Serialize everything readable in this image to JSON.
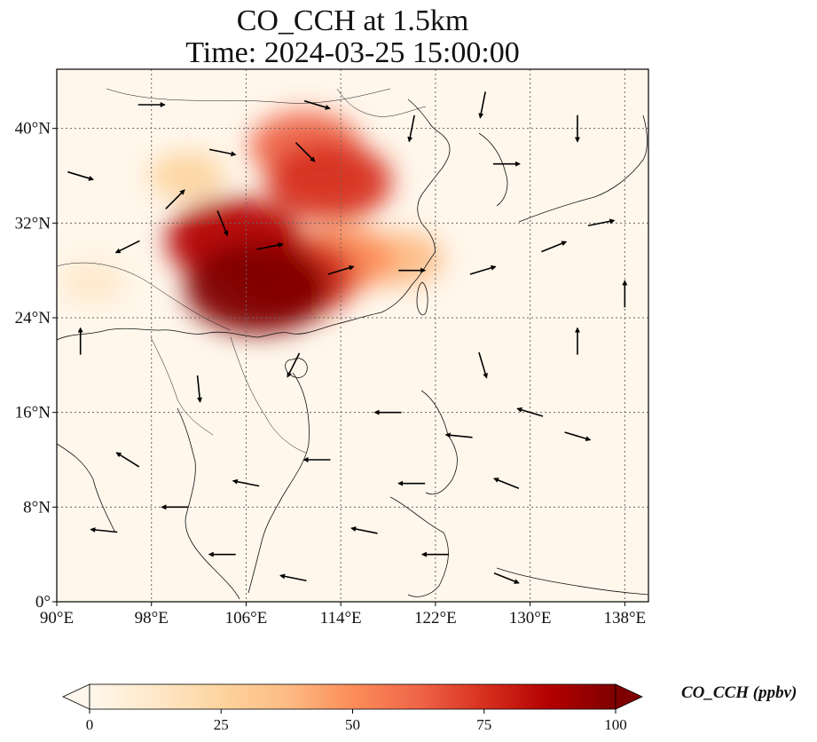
{
  "title": {
    "line1": "CO_CCH at 1.5km",
    "line2": "Time: 2024-03-25 15:00:00"
  },
  "map": {
    "lon_range": [
      90,
      140
    ],
    "lat_range": [
      0,
      45
    ],
    "lon_ticks": [
      {
        "value": 90,
        "label": "90°E"
      },
      {
        "value": 98,
        "label": "98°E"
      },
      {
        "value": 106,
        "label": "106°E"
      },
      {
        "value": 114,
        "label": "114°E"
      },
      {
        "value": 122,
        "label": "122°E"
      },
      {
        "value": 130,
        "label": "130°E"
      },
      {
        "value": 138,
        "label": "138°E"
      }
    ],
    "lat_ticks": [
      {
        "value": 0,
        "label": "0°"
      },
      {
        "value": 8,
        "label": "8°N"
      },
      {
        "value": 16,
        "label": "16°N"
      },
      {
        "value": 24,
        "label": "24°N"
      },
      {
        "value": 32,
        "label": "32°N"
      },
      {
        "value": 40,
        "label": "40°N"
      }
    ],
    "gridlines": "dotted",
    "colormap": "OrRd",
    "concentration_plumes": [
      {
        "lon": 107,
        "lat": 26.5,
        "value": 95
      },
      {
        "lon": 105,
        "lat": 30.5,
        "value": 85
      },
      {
        "lon": 110,
        "lat": 27.5,
        "value": 80
      },
      {
        "lon": 113,
        "lat": 35.5,
        "value": 75
      },
      {
        "lon": 111,
        "lat": 38.5,
        "value": 60
      },
      {
        "lon": 114,
        "lat": 29,
        "value": 55
      },
      {
        "lon": 119,
        "lat": 29,
        "value": 35
      },
      {
        "lon": 101,
        "lat": 36,
        "value": 25
      },
      {
        "lon": 93,
        "lat": 27,
        "value": 15
      },
      {
        "lon": 118,
        "lat": 21,
        "value": 5
      }
    ],
    "wind_vectors": [
      {
        "lon": 111,
        "lat": 38,
        "u": 1,
        "v": -1
      },
      {
        "lon": 100,
        "lat": 34,
        "u": 1,
        "v": 1
      },
      {
        "lon": 104,
        "lat": 32,
        "u": 0.4,
        "v": -1
      },
      {
        "lon": 108,
        "lat": 30,
        "u": 1,
        "v": 0.2
      },
      {
        "lon": 114,
        "lat": 28,
        "u": 1,
        "v": 0.3
      },
      {
        "lon": 120,
        "lat": 28,
        "u": 1,
        "v": 0
      },
      {
        "lon": 126,
        "lat": 28,
        "u": 1,
        "v": 0.3
      },
      {
        "lon": 132,
        "lat": 30,
        "u": 1,
        "v": 0.4
      },
      {
        "lon": 136,
        "lat": 32,
        "u": 1,
        "v": 0.2
      },
      {
        "lon": 112,
        "lat": 42,
        "u": 1,
        "v": -0.3
      },
      {
        "lon": 120,
        "lat": 40,
        "u": -0.2,
        "v": -1
      },
      {
        "lon": 128,
        "lat": 37,
        "u": 1,
        "v": 0
      },
      {
        "lon": 96,
        "lat": 30,
        "u": -1,
        "v": -0.5
      },
      {
        "lon": 118,
        "lat": 16,
        "u": -1,
        "v": 0
      },
      {
        "lon": 124,
        "lat": 14,
        "u": -1,
        "v": 0.1
      },
      {
        "lon": 130,
        "lat": 16,
        "u": -1,
        "v": 0.3
      },
      {
        "lon": 112,
        "lat": 12,
        "u": -1,
        "v": 0
      },
      {
        "lon": 106,
        "lat": 10,
        "u": -1,
        "v": 0.2
      },
      {
        "lon": 100,
        "lat": 8,
        "u": -1,
        "v": 0
      },
      {
        "lon": 94,
        "lat": 6,
        "u": -1,
        "v": 0.1
      },
      {
        "lon": 116,
        "lat": 6,
        "u": -1,
        "v": 0.2
      },
      {
        "lon": 122,
        "lat": 4,
        "u": -1,
        "v": 0
      },
      {
        "lon": 128,
        "lat": 2,
        "u": 1,
        "v": -0.4
      },
      {
        "lon": 134,
        "lat": 14,
        "u": 1,
        "v": -0.3
      },
      {
        "lon": 102,
        "lat": 18,
        "u": 0.1,
        "v": -1
      },
      {
        "lon": 110,
        "lat": 20,
        "u": -0.5,
        "v": -1
      },
      {
        "lon": 126,
        "lat": 20,
        "u": 0.3,
        "v": -1
      },
      {
        "lon": 134,
        "lat": 22,
        "u": 0,
        "v": 1
      },
      {
        "lon": 96,
        "lat": 12,
        "u": -0.8,
        "v": 0.5
      },
      {
        "lon": 92,
        "lat": 22,
        "u": 0,
        "v": 1
      },
      {
        "lon": 104,
        "lat": 4,
        "u": -1,
        "v": 0
      },
      {
        "lon": 110,
        "lat": 2,
        "u": -1,
        "v": 0.2
      },
      {
        "lon": 120,
        "lat": 10,
        "u": -1,
        "v": 0
      },
      {
        "lon": 128,
        "lat": 10,
        "u": -1,
        "v": 0.4
      },
      {
        "lon": 92,
        "lat": 36,
        "u": 1,
        "v": -0.3
      },
      {
        "lon": 104,
        "lat": 38,
        "u": 1,
        "v": -0.2
      },
      {
        "lon": 98,
        "lat": 42,
        "u": 1,
        "v": 0
      },
      {
        "lon": 126,
        "lat": 42,
        "u": -0.2,
        "v": -1
      },
      {
        "lon": 134,
        "lat": 40,
        "u": 0,
        "v": -1
      },
      {
        "lon": 138,
        "lat": 26,
        "u": 0,
        "v": 1
      }
    ]
  },
  "colorbar": {
    "label": "CO_CCH (ppbv)",
    "min": 0,
    "max": 100,
    "extend": "both",
    "ticks": [
      {
        "value": 0,
        "label": "0"
      },
      {
        "value": 25,
        "label": "25"
      },
      {
        "value": 50,
        "label": "50"
      },
      {
        "value": 75,
        "label": "75"
      },
      {
        "value": 100,
        "label": "100"
      }
    ],
    "colors": [
      "#fff7ec",
      "#fee8c8",
      "#fdd49e",
      "#fdbb84",
      "#fc8d59",
      "#ef6548",
      "#d7301f",
      "#b30000",
      "#7f0000"
    ]
  }
}
